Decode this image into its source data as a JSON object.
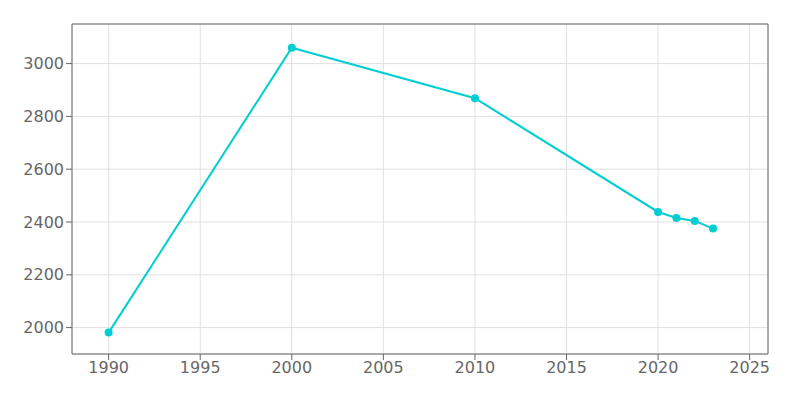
{
  "chart_data": {
    "type": "line",
    "x": [
      1990,
      2000,
      2010,
      2020,
      2021,
      2022,
      2023
    ],
    "values": [
      1981,
      3060,
      2869,
      2438,
      2415,
      2404,
      2375
    ],
    "color": "#00CED1",
    "marker": "circle",
    "line_style": "solid",
    "xlim": [
      1988,
      2026
    ],
    "xticks": [
      1990,
      1995,
      2000,
      2005,
      2010,
      2015,
      2020,
      2025
    ],
    "ylim": [
      1900,
      3150
    ],
    "yticks": [
      2000,
      2200,
      2400,
      2600,
      2800,
      3000
    ],
    "grid": true
  }
}
